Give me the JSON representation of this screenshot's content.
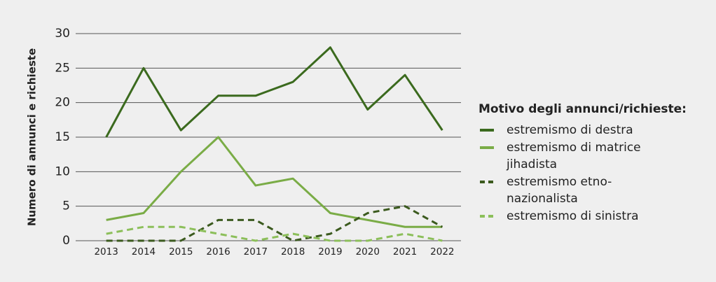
{
  "chart_data": {
    "type": "line",
    "ylabel": "Numero di annunci e richieste",
    "legend_title": "Motivo degli annunci/richieste:",
    "categories": [
      "2013",
      "2014",
      "2015",
      "2016",
      "2017",
      "2018",
      "2019",
      "2020",
      "2021",
      "2022"
    ],
    "series": [
      {
        "name": "estremismo di destra",
        "color": "#3b6a1e",
        "dash": false,
        "values": [
          15,
          25,
          16,
          21,
          21,
          23,
          28,
          19,
          24,
          16
        ]
      },
      {
        "name": "estremismo di matrice jihadista",
        "color": "#7aac46",
        "dash": false,
        "values": [
          3,
          4,
          10,
          15,
          8,
          9,
          4,
          3,
          2,
          2
        ]
      },
      {
        "name": "estremismo etno-nazionalista",
        "color": "#3b5a1e",
        "dash": true,
        "values": [
          0,
          0,
          0,
          3,
          3,
          0,
          1,
          4,
          5,
          2
        ]
      },
      {
        "name": "estremismo di sinistra",
        "color": "#8cbf5a",
        "dash": true,
        "values": [
          1,
          2,
          2,
          1,
          0,
          1,
          0,
          0,
          1,
          0
        ]
      }
    ],
    "ylim": [
      0,
      30
    ],
    "yticks": [
      0,
      5,
      10,
      15,
      20,
      25,
      30
    ],
    "grid": true,
    "legend": "right"
  }
}
